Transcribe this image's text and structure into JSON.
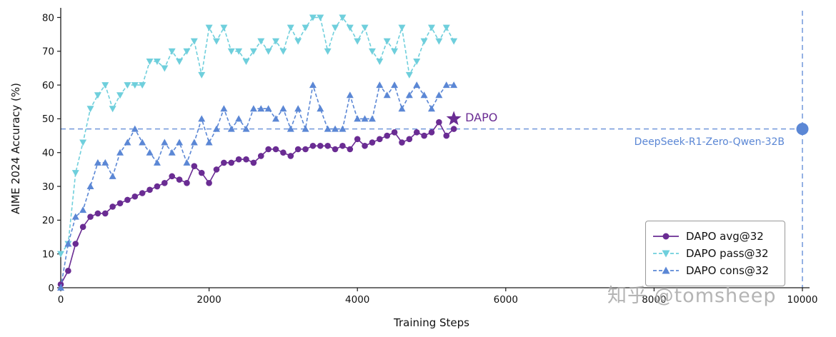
{
  "chart_data": {
    "type": "line",
    "title": "",
    "xlabel": "Training Steps",
    "ylabel": "AIME 2024 Accuracy (%)",
    "xlim": [
      0,
      10000
    ],
    "ylim": [
      0,
      82
    ],
    "xticks": [
      0,
      2000,
      4000,
      6000,
      8000,
      10000
    ],
    "yticks": [
      0,
      10,
      20,
      30,
      40,
      50,
      60,
      70,
      80
    ],
    "grid": false,
    "legend_position": "lower right",
    "x": [
      0,
      100,
      200,
      300,
      400,
      500,
      600,
      700,
      800,
      900,
      1000,
      1100,
      1200,
      1300,
      1400,
      1500,
      1600,
      1700,
      1800,
      1900,
      2000,
      2100,
      2200,
      2300,
      2400,
      2500,
      2600,
      2700,
      2800,
      2900,
      3000,
      3100,
      3200,
      3300,
      3400,
      3500,
      3600,
      3700,
      3800,
      3900,
      4000,
      4100,
      4200,
      4300,
      4400,
      4500,
      4600,
      4700,
      4800,
      4900,
      5000,
      5100,
      5200,
      5300
    ],
    "series": [
      {
        "name": "DAPO avg@32",
        "color": "#6a2c93",
        "marker": "circle",
        "dash": null,
        "values": [
          1,
          5,
          13,
          18,
          21,
          22,
          22,
          24,
          25,
          26,
          27,
          28,
          29,
          30,
          31,
          33,
          32,
          31,
          36,
          34,
          31,
          35,
          37,
          37,
          38,
          38,
          37,
          39,
          41,
          41,
          40,
          39,
          41,
          41,
          42,
          42,
          42,
          41,
          42,
          41,
          44,
          42,
          43,
          44,
          45,
          46,
          43,
          44,
          46,
          45,
          46,
          49,
          45,
          47
        ]
      },
      {
        "name": "DAPO pass@32",
        "color": "#6fcfdc",
        "marker": "triangle-down",
        "dash": [
          5,
          3
        ],
        "values": [
          10,
          13,
          34,
          43,
          53,
          57,
          60,
          53,
          57,
          60,
          60,
          60,
          67,
          67,
          65,
          70,
          67,
          70,
          73,
          63,
          77,
          73,
          77,
          70,
          70,
          67,
          70,
          73,
          70,
          73,
          70,
          77,
          73,
          77,
          80,
          80,
          70,
          77,
          80,
          77,
          73,
          77,
          70,
          67,
          73,
          70,
          77,
          63,
          67,
          73,
          77,
          73,
          77,
          73
        ]
      },
      {
        "name": "DAPO cons@32",
        "color": "#5b87d5",
        "marker": "triangle-up",
        "dash": [
          5,
          3
        ],
        "values": [
          0,
          13,
          21,
          23,
          30,
          37,
          37,
          33,
          40,
          43,
          47,
          43,
          40,
          37,
          43,
          40,
          43,
          37,
          43,
          50,
          43,
          47,
          53,
          47,
          50,
          47,
          53,
          53,
          53,
          50,
          53,
          47,
          53,
          47,
          60,
          53,
          47,
          47,
          47,
          57,
          50,
          50,
          50,
          60,
          57,
          60,
          53,
          57,
          60,
          57,
          53,
          57,
          60,
          60
        ]
      }
    ],
    "annotation": {
      "label": "DAPO",
      "x": 5300,
      "y": 50,
      "marker": "star",
      "color": "#6a2c93"
    },
    "reference": {
      "label": "DeepSeek-R1-Zero-Qwen-32B",
      "value": 47,
      "x": 10000,
      "color": "#5b87d5",
      "endpoint_marker": "circle"
    }
  },
  "watermark": {
    "text": "知乎 @tomsheep"
  }
}
